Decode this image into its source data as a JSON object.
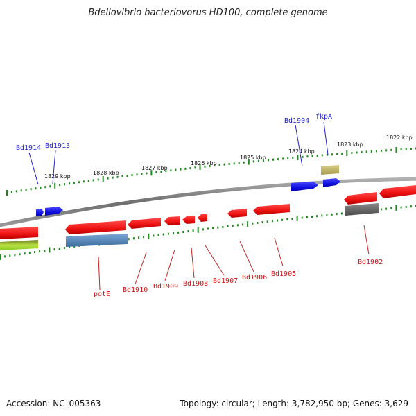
{
  "title": "Bdellovibrio bacteriovorus HD100, complete genome",
  "footer": {
    "accession": "Accession: NC_005363",
    "summary": "Topology: circular; Length: 3,782,950 bp; Genes: 3,629"
  },
  "colors": {
    "backbone": "#7a7a7a",
    "tick": "#1a8a1a",
    "forward_gene": "#1010e0",
    "reverse_gene": "#ee1111",
    "label_top": "#1f1fc8",
    "label_bottom": "#c81414"
  },
  "scale_labels": [
    "1829 kbp",
    "1828 kbp",
    "1827 kbp",
    "1826 kbp",
    "1825 kbp",
    "1824 kbp",
    "1823 kbp",
    "1822 kbp"
  ],
  "top_labels": [
    "Bd1914",
    "Bd1913",
    "Bd1904",
    "fkpA"
  ],
  "bottom_labels": [
    "potE",
    "Bd1910",
    "Bd1909",
    "Bd1908",
    "Bd1907",
    "Bd1906",
    "Bd1905",
    "Bd1902"
  ]
}
